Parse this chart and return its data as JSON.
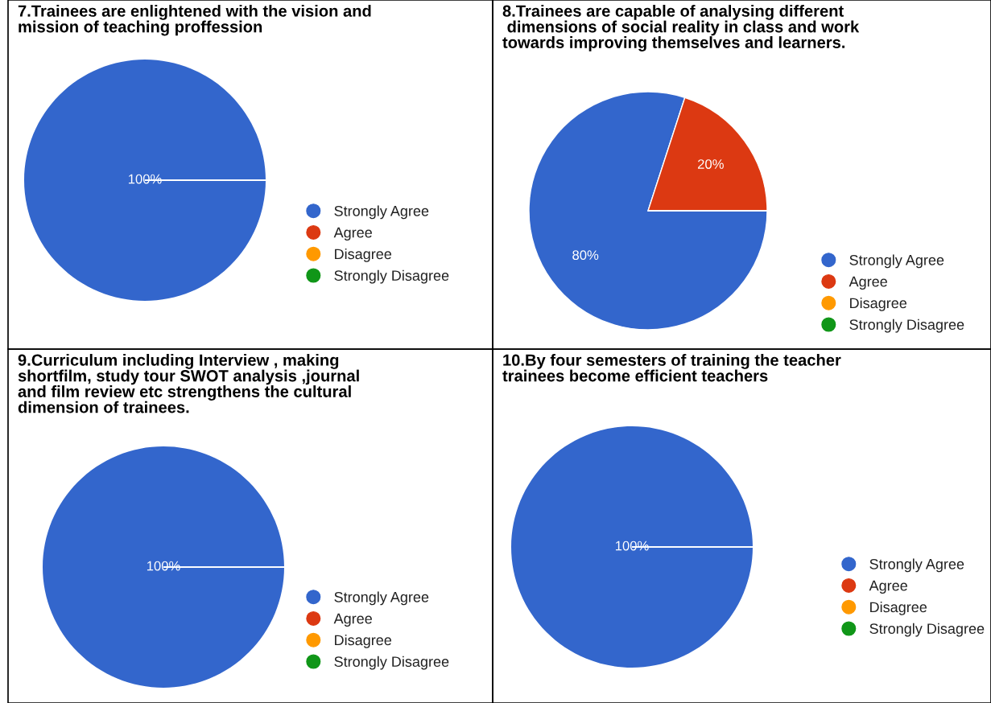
{
  "chart_data": [
    {
      "type": "pie",
      "title": "7.Trainees are enlightened with the vision and\nmission of teaching proffession",
      "categories": [
        "Strongly Agree",
        "Agree",
        "Disagree",
        "Strongly Disagree"
      ],
      "values": [
        100,
        0,
        0,
        0
      ],
      "value_labels": [
        "100%",
        null,
        null,
        null
      ],
      "colors": [
        "#3366cc",
        "#dc3912",
        "#ff9900",
        "#109618"
      ],
      "legend": "right"
    },
    {
      "type": "pie",
      "title": "8.Trainees are capable of analysing different\n dimensions of social reality in class and work\ntowards improving themselves and learners.",
      "categories": [
        "Strongly Agree",
        "Agree",
        "Disagree",
        "Strongly Disagree"
      ],
      "values": [
        80,
        20,
        0,
        0
      ],
      "value_labels": [
        "80%",
        "20%",
        null,
        null
      ],
      "colors": [
        "#3366cc",
        "#dc3912",
        "#ff9900",
        "#109618"
      ],
      "legend": "bottom right"
    },
    {
      "type": "pie",
      "title": "9.Curriculum including Interview , making\nshortfilm, study tour SWOT analysis ,journal\nand film review etc strengthens the cultural\ndimension of trainees.",
      "categories": [
        "Strongly Agree",
        "Agree",
        "Disagree",
        "Strongly Disagree"
      ],
      "values": [
        100,
        0,
        0,
        0
      ],
      "value_labels": [
        "100%",
        null,
        null,
        null
      ],
      "colors": [
        "#3366cc",
        "#dc3912",
        "#ff9900",
        "#109618"
      ],
      "legend": "right"
    },
    {
      "type": "pie",
      "title": "10.By four semesters of training the teacher\ntrainees become efficient teachers",
      "categories": [
        "Strongly Agree",
        "Agree",
        "Disagree",
        "Strongly Disagree"
      ],
      "values": [
        100,
        0,
        0,
        0
      ],
      "value_labels": [
        "100%",
        null,
        null,
        null
      ],
      "colors": [
        "#3366cc",
        "#dc3912",
        "#ff9900",
        "#109618"
      ],
      "legend": "right"
    }
  ]
}
